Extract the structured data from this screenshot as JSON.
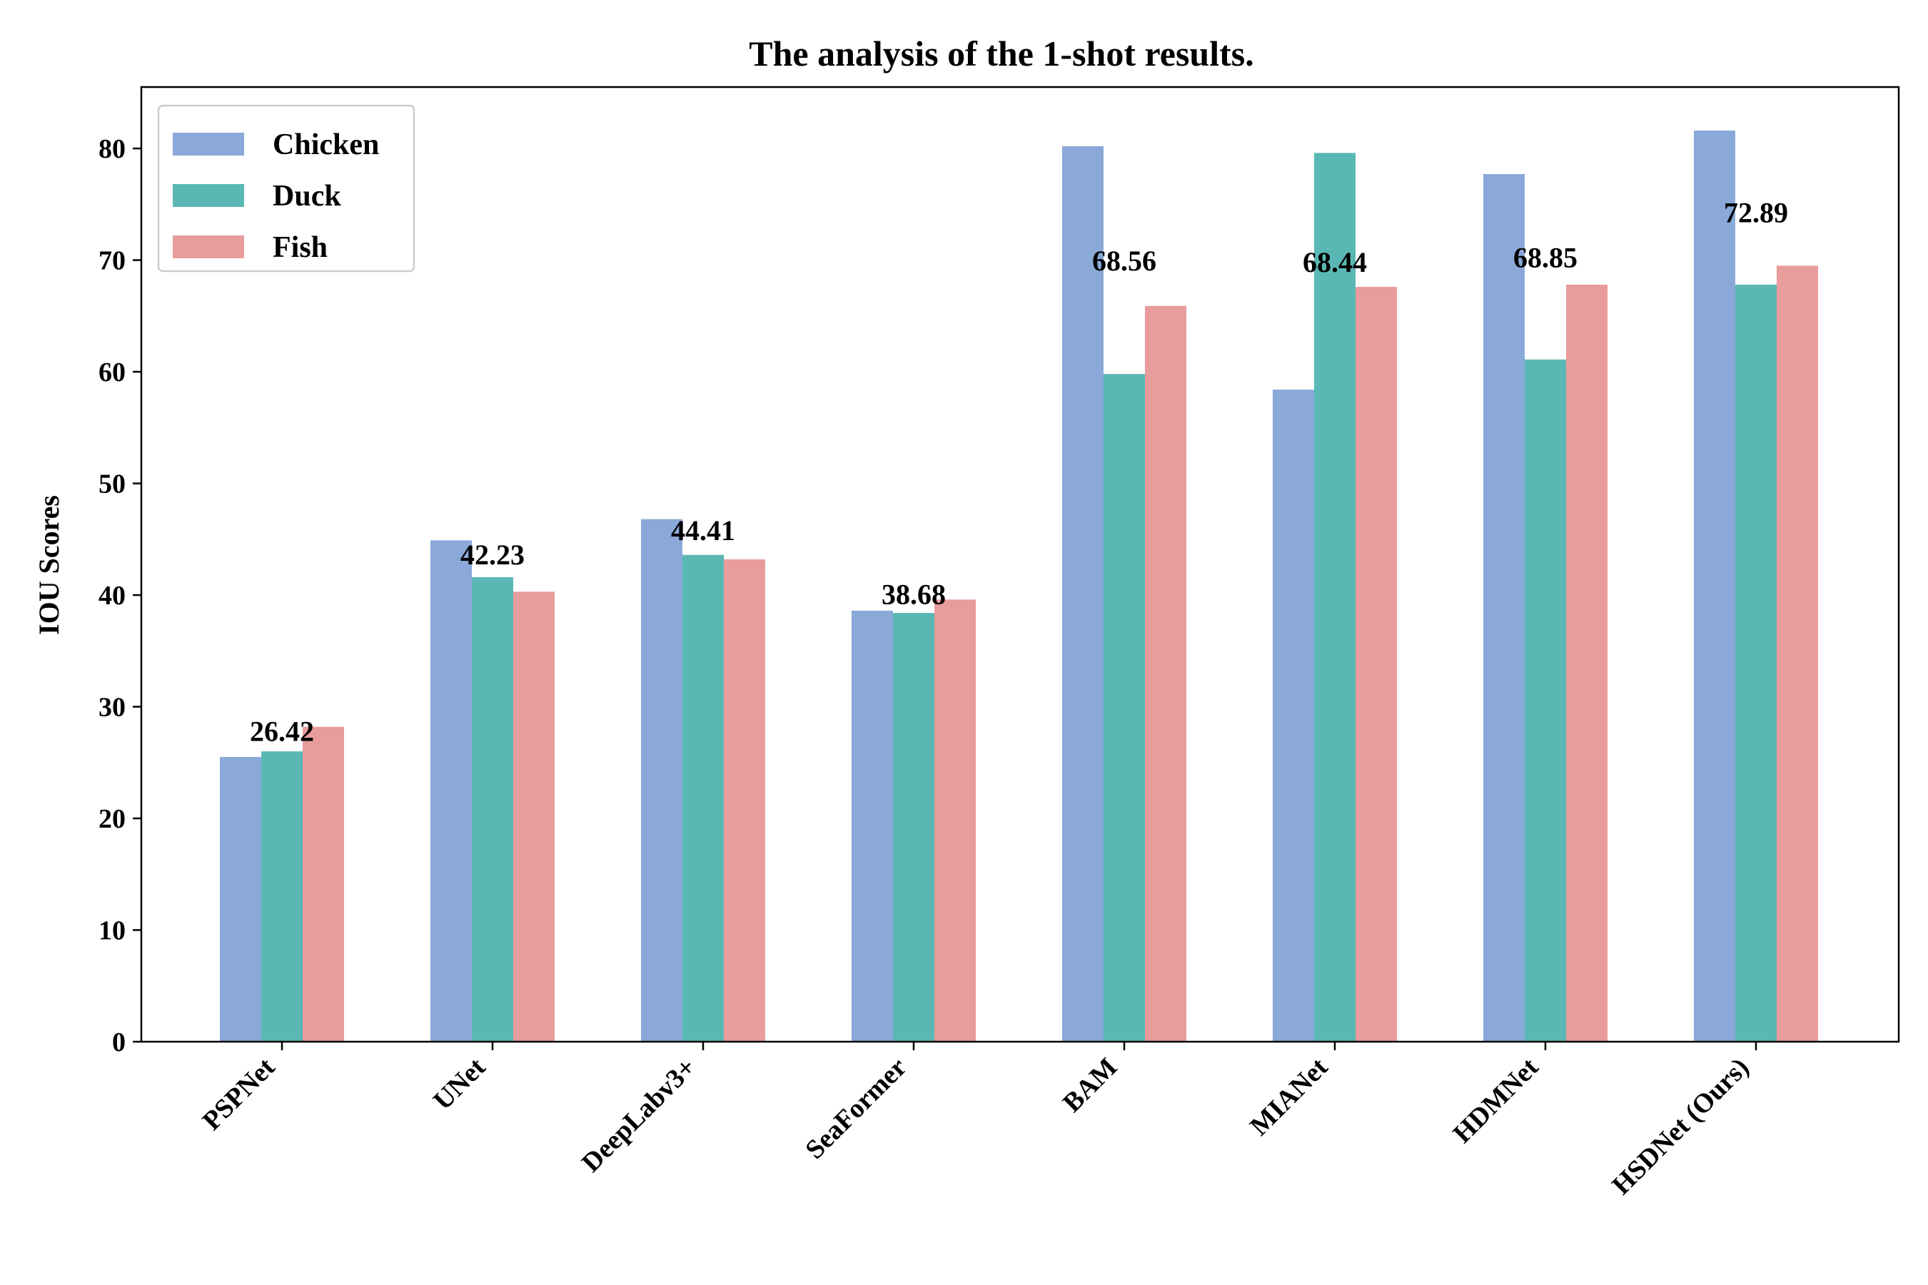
{
  "chart_data": {
    "type": "bar",
    "title": "The analysis of the 1-shot results.",
    "xlabel": "",
    "ylabel": "IOU Scores",
    "ylim": [
      0,
      85.5
    ],
    "yticks": [
      "0",
      "10",
      "20",
      "30",
      "40",
      "50",
      "60",
      "70",
      "80"
    ],
    "grid": false,
    "legend_position": "upper-left",
    "categories": [
      "PSPNet",
      "UNet",
      "DeepLabv3+",
      "SeaFormer",
      "BAM",
      "MIANet",
      "HDMNet",
      "HSDNet (Ours)"
    ],
    "series": [
      {
        "name": "Chicken",
        "color": "#8aa8d8",
        "values": [
          25.5,
          44.9,
          46.8,
          38.6,
          80.2,
          58.4,
          77.7,
          81.6
        ]
      },
      {
        "name": "Duck",
        "color": "#5ab8b4",
        "values": [
          26.0,
          41.6,
          43.6,
          38.4,
          59.8,
          79.6,
          61.1,
          67.8
        ]
      },
      {
        "name": "Fish",
        "color": "#e89c9c",
        "values": [
          28.2,
          40.3,
          43.2,
          39.6,
          65.9,
          67.6,
          67.8,
          69.5
        ]
      }
    ],
    "data_labels": [
      "26.42",
      "42.23",
      "44.41",
      "38.68",
      "68.56",
      "68.44",
      "68.85",
      "72.89"
    ],
    "data_label_values": [
      26.42,
      42.23,
      44.41,
      38.68,
      68.56,
      68.44,
      68.85,
      72.89
    ]
  }
}
